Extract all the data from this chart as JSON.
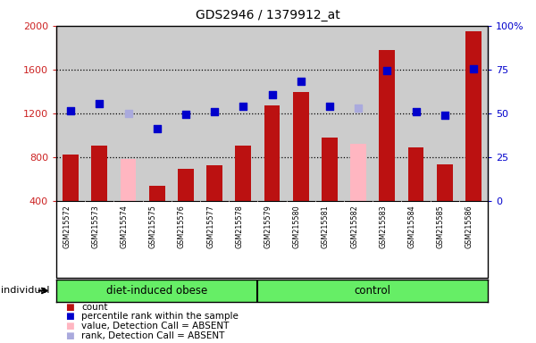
{
  "title": "GDS2946 / 1379912_at",
  "samples": [
    "GSM215572",
    "GSM215573",
    "GSM215574",
    "GSM215575",
    "GSM215576",
    "GSM215577",
    "GSM215578",
    "GSM215579",
    "GSM215580",
    "GSM215581",
    "GSM215582",
    "GSM215583",
    "GSM215584",
    "GSM215585",
    "GSM215586"
  ],
  "count_values": [
    820,
    900,
    null,
    540,
    690,
    720,
    900,
    1270,
    1390,
    980,
    null,
    1780,
    890,
    730,
    1950
  ],
  "count_absent": [
    null,
    null,
    780,
    null,
    null,
    null,
    null,
    null,
    null,
    null,
    920,
    null,
    null,
    null,
    null
  ],
  "rank_values": [
    1220,
    1290,
    null,
    1060,
    1190,
    1210,
    1260,
    1370,
    1490,
    1260,
    null,
    1590,
    1210,
    1180,
    1610
  ],
  "rank_absent": [
    null,
    null,
    1200,
    null,
    null,
    null,
    null,
    null,
    null,
    null,
    1250,
    null,
    null,
    null,
    null
  ],
  "ylim_left": [
    400,
    2000
  ],
  "ylim_right": [
    0,
    100
  ],
  "left_ticks": [
    400,
    800,
    1200,
    1600,
    2000
  ],
  "right_ticks": [
    0,
    25,
    50,
    75,
    100
  ],
  "bar_color": "#BB1111",
  "absent_bar_color": "#FFB6C1",
  "rank_dot_color": "#0000CC",
  "rank_absent_dot_color": "#AAAADD",
  "left_axis_color": "#CC2222",
  "right_axis_color": "#0000CC",
  "bg_color": "#CCCCCC",
  "group_color": "#66EE66",
  "n_obese": 7,
  "n_control": 8,
  "legend_items": [
    {
      "color": "#BB1111",
      "label": "count"
    },
    {
      "color": "#0000CC",
      "label": "percentile rank within the sample"
    },
    {
      "color": "#FFB6C1",
      "label": "value, Detection Call = ABSENT"
    },
    {
      "color": "#AAAADD",
      "label": "rank, Detection Call = ABSENT"
    }
  ]
}
